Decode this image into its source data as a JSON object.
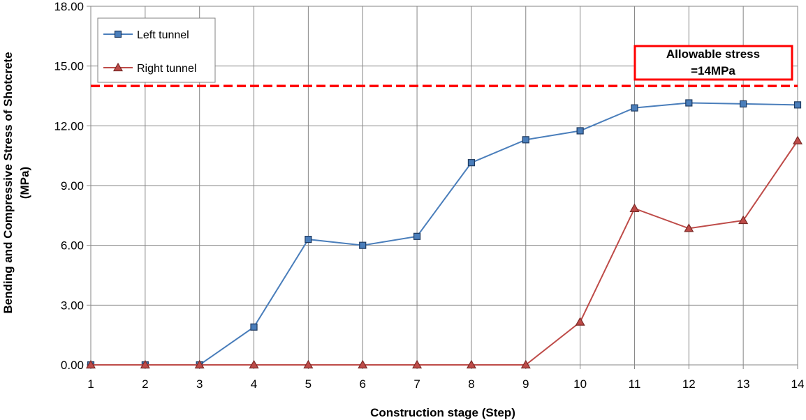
{
  "chart_data": {
    "type": "line",
    "xlabel": "Construction stage (Step)",
    "ylabel_line1": "Bending and Compressive Stress of Shotcrete",
    "ylabel_line2": "(MPa)",
    "x": [
      1,
      2,
      3,
      4,
      5,
      6,
      7,
      8,
      9,
      10,
      11,
      12,
      13,
      14
    ],
    "xlim": [
      1,
      14
    ],
    "ylim": [
      0,
      18
    ],
    "y_ticks": [
      "0.00",
      "3.00",
      "6.00",
      "9.00",
      "12.00",
      "15.00",
      "18.00"
    ],
    "x_ticks": [
      "1",
      "2",
      "3",
      "4",
      "5",
      "6",
      "7",
      "8",
      "9",
      "10",
      "11",
      "12",
      "13",
      "14"
    ],
    "grid": true,
    "legend_position": "top-left",
    "series": [
      {
        "name": "Left tunnel",
        "marker": "square",
        "color": "#4a7ebb",
        "values": [
          0,
          0,
          0,
          1.9,
          6.3,
          6.0,
          6.45,
          10.15,
          11.3,
          11.75,
          12.9,
          13.15,
          13.1,
          13.05
        ]
      },
      {
        "name": "Right tunnel",
        "marker": "triangle",
        "color": "#be4b48",
        "values": [
          0,
          0,
          0,
          0,
          0,
          0,
          0,
          0,
          0,
          2.15,
          7.85,
          6.85,
          7.25,
          11.25
        ]
      }
    ],
    "reference_line": {
      "value": 14,
      "color": "#ff0000",
      "style": "dashed"
    },
    "annotation": {
      "line1": "Allowable stress",
      "line2": "=14MPa",
      "border_color": "#ff0000"
    }
  }
}
